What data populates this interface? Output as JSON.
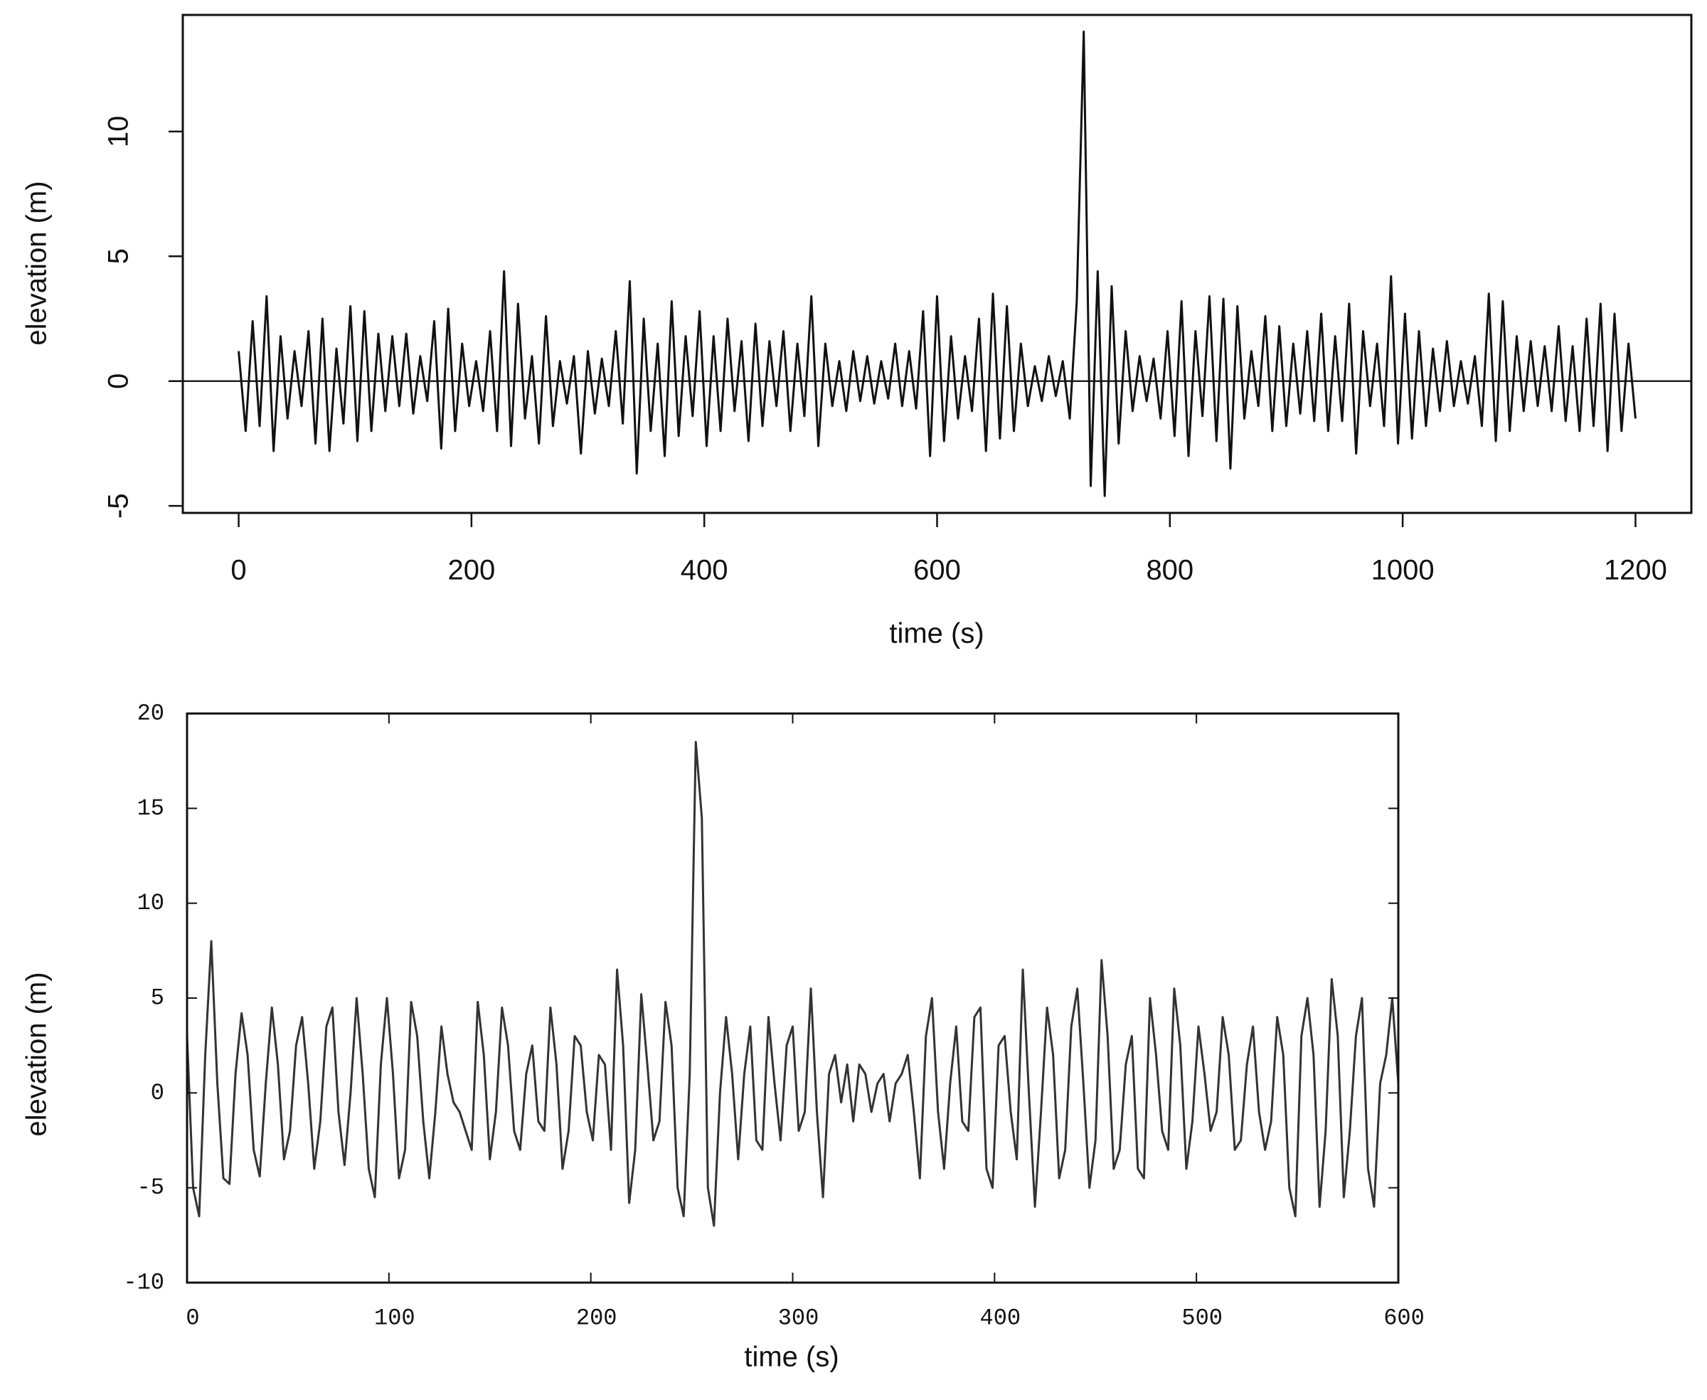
{
  "chart_data": [
    {
      "type": "line",
      "xlabel": "time (s)",
      "ylabel": "elevation (m)",
      "color": "#111111",
      "hline": 0,
      "xlim": [
        -48,
        1248
      ],
      "ylim": [
        -5.28,
        14.67
      ],
      "xticks": [
        0,
        200,
        400,
        600,
        800,
        1000,
        1200
      ],
      "yticks": [
        -5,
        0,
        5,
        10
      ],
      "x": [
        0,
        6,
        12,
        18,
        24,
        30,
        36,
        42,
        48,
        54,
        60,
        66,
        72,
        78,
        84,
        90,
        96,
        102,
        108,
        114,
        120,
        126,
        132,
        138,
        144,
        150,
        156,
        162,
        168,
        174,
        180,
        186,
        192,
        198,
        204,
        210,
        216,
        222,
        228,
        234,
        240,
        246,
        252,
        258,
        264,
        270,
        276,
        282,
        288,
        294,
        300,
        306,
        312,
        318,
        324,
        330,
        336,
        342,
        348,
        354,
        360,
        366,
        372,
        378,
        384,
        390,
        396,
        402,
        408,
        414,
        420,
        426,
        432,
        438,
        444,
        450,
        456,
        462,
        468,
        474,
        480,
        486,
        492,
        498,
        504,
        510,
        516,
        522,
        528,
        534,
        540,
        546,
        552,
        558,
        564,
        570,
        576,
        582,
        588,
        594,
        600,
        606,
        612,
        618,
        624,
        630,
        636,
        642,
        648,
        654,
        660,
        666,
        672,
        678,
        684,
        690,
        696,
        702,
        708,
        714,
        720,
        726,
        732,
        738,
        744,
        750,
        756,
        762,
        768,
        774,
        780,
        786,
        792,
        798,
        804,
        810,
        816,
        822,
        828,
        834,
        840,
        846,
        852,
        858,
        864,
        870,
        876,
        882,
        888,
        894,
        900,
        906,
        912,
        918,
        924,
        930,
        936,
        942,
        948,
        954,
        960,
        966,
        972,
        978,
        984,
        990,
        996,
        1002,
        1008,
        1014,
        1020,
        1026,
        1032,
        1038,
        1044,
        1050,
        1056,
        1062,
        1068,
        1074,
        1080,
        1086,
        1092,
        1098,
        1104,
        1110,
        1116,
        1122,
        1128,
        1134,
        1140,
        1146,
        1152,
        1158,
        1164,
        1170,
        1176,
        1182,
        1188,
        1194,
        1200
      ],
      "values": [
        1.2,
        -2.0,
        2.4,
        -1.8,
        3.4,
        -2.8,
        1.8,
        -1.5,
        1.2,
        -1.0,
        2.0,
        -2.5,
        2.5,
        -2.8,
        1.3,
        -1.7,
        3.0,
        -2.4,
        2.8,
        -2.0,
        1.9,
        -1.2,
        1.8,
        -1.0,
        1.9,
        -1.3,
        1.0,
        -0.8,
        2.4,
        -2.7,
        2.9,
        -2.0,
        1.5,
        -1.0,
        0.8,
        -1.2,
        2.0,
        -2.0,
        4.4,
        -2.6,
        3.1,
        -1.5,
        1.0,
        -2.5,
        2.6,
        -1.8,
        0.8,
        -0.9,
        1.0,
        -2.9,
        1.2,
        -1.3,
        0.9,
        -1.0,
        2.0,
        -1.7,
        4.0,
        -3.7,
        2.5,
        -2.0,
        1.5,
        -3.0,
        3.2,
        -2.2,
        1.8,
        -1.4,
        2.8,
        -2.6,
        1.8,
        -2.0,
        2.5,
        -1.2,
        1.6,
        -2.4,
        2.3,
        -1.8,
        1.6,
        -1.0,
        2.0,
        -2.0,
        1.5,
        -1.4,
        3.4,
        -2.6,
        1.5,
        -1.0,
        0.8,
        -1.2,
        1.2,
        -0.8,
        1.0,
        -0.9,
        0.8,
        -0.7,
        1.5,
        -1.0,
        1.2,
        -1.1,
        2.8,
        -3.0,
        3.4,
        -2.4,
        1.8,
        -1.5,
        1.0,
        -1.2,
        2.5,
        -2.8,
        3.5,
        -2.3,
        3.0,
        -2.0,
        1.5,
        -1.0,
        0.6,
        -0.8,
        1.0,
        -0.6,
        0.8,
        -1.5,
        3.2,
        14.0,
        -4.2,
        4.4,
        -4.6,
        3.8,
        -2.5,
        2.0,
        -1.2,
        1.0,
        -0.8,
        0.9,
        -1.5,
        2.0,
        -2.2,
        3.2,
        -3.0,
        2.0,
        -1.4,
        3.4,
        -2.4,
        3.3,
        -3.5,
        3.0,
        -1.5,
        1.2,
        -1.0,
        2.6,
        -2.0,
        2.2,
        -1.8,
        1.5,
        -1.3,
        2.0,
        -1.6,
        2.7,
        -2.0,
        1.8,
        -1.6,
        3.1,
        -2.9,
        2.0,
        -1.0,
        1.5,
        -1.8,
        4.2,
        -2.5,
        2.7,
        -2.3,
        2.0,
        -1.8,
        1.3,
        -1.2,
        1.6,
        -1.0,
        0.8,
        -0.9,
        1.0,
        -1.8,
        3.5,
        -2.4,
        3.2,
        -2.0,
        1.8,
        -1.2,
        1.6,
        -1.0,
        1.4,
        -1.2,
        2.2,
        -1.6,
        1.4,
        -2.0,
        2.5,
        -1.8,
        3.1,
        -2.8,
        2.7,
        -2.0,
        1.5,
        -1.5
      ]
    },
    {
      "type": "line",
      "xlabel": "time (s)",
      "ylabel": "elevation (m)",
      "color": "#333333",
      "xlim": [
        0,
        600
      ],
      "ylim": [
        -10,
        20
      ],
      "xticks": [
        0,
        100,
        200,
        300,
        400,
        500,
        600
      ],
      "yticks": [
        -10,
        -5,
        0,
        5,
        10,
        15,
        20
      ],
      "x": [
        0,
        3,
        6,
        9,
        12,
        15,
        18,
        21,
        24,
        27,
        30,
        33,
        36,
        39,
        42,
        45,
        48,
        51,
        54,
        57,
        60,
        63,
        66,
        69,
        72,
        75,
        78,
        81,
        84,
        87,
        90,
        93,
        96,
        99,
        102,
        105,
        108,
        111,
        114,
        117,
        120,
        123,
        126,
        129,
        132,
        135,
        138,
        141,
        144,
        147,
        150,
        153,
        156,
        159,
        162,
        165,
        168,
        171,
        174,
        177,
        180,
        183,
        186,
        189,
        192,
        195,
        198,
        201,
        204,
        207,
        210,
        213,
        216,
        219,
        222,
        225,
        228,
        231,
        234,
        237,
        240,
        243,
        246,
        249,
        252,
        255,
        258,
        261,
        264,
        267,
        270,
        273,
        276,
        279,
        282,
        285,
        288,
        291,
        294,
        297,
        300,
        303,
        306,
        309,
        312,
        315,
        318,
        321,
        324,
        327,
        330,
        333,
        336,
        339,
        342,
        345,
        348,
        351,
        354,
        357,
        360,
        363,
        366,
        369,
        372,
        375,
        378,
        381,
        384,
        387,
        390,
        393,
        396,
        399,
        402,
        405,
        408,
        411,
        414,
        417,
        420,
        423,
        426,
        429,
        432,
        435,
        438,
        441,
        444,
        447,
        450,
        453,
        456,
        459,
        462,
        465,
        468,
        471,
        474,
        477,
        480,
        483,
        486,
        489,
        492,
        495,
        498,
        501,
        504,
        507,
        510,
        513,
        516,
        519,
        522,
        525,
        528,
        531,
        534,
        537,
        540,
        543,
        546,
        549,
        552,
        555,
        558,
        561,
        564,
        567,
        570,
        573,
        576,
        579,
        582,
        585,
        588,
        591,
        594,
        597,
        600
      ],
      "values": [
        3.0,
        -5.0,
        -6.5,
        2.0,
        8.0,
        0.5,
        -4.5,
        -4.8,
        1.0,
        4.2,
        2.0,
        -3.0,
        -4.4,
        0.5,
        4.5,
        1.5,
        -3.5,
        -2.0,
        2.5,
        4.0,
        0.5,
        -4.0,
        -1.5,
        3.5,
        4.5,
        -1.0,
        -3.8,
        0.0,
        5.0,
        1.0,
        -4.0,
        -5.5,
        1.5,
        5.0,
        1.0,
        -4.5,
        -3.0,
        4.8,
        3.0,
        -1.5,
        -4.5,
        -1.0,
        3.5,
        1.0,
        -0.5,
        -1.0,
        -2.0,
        -3.0,
        4.8,
        2.0,
        -3.5,
        -1.0,
        4.5,
        2.5,
        -2.0,
        -3.0,
        1.0,
        2.5,
        -1.5,
        -2.0,
        4.5,
        1.5,
        -4.0,
        -2.0,
        3.0,
        2.5,
        -1.0,
        -2.5,
        2.0,
        1.5,
        -3.0,
        6.5,
        2.5,
        -5.8,
        -3.0,
        5.2,
        1.5,
        -2.5,
        -1.5,
        4.8,
        2.5,
        -5.0,
        -6.5,
        1.0,
        18.5,
        14.5,
        -5.0,
        -7.0,
        0.0,
        4.0,
        1.0,
        -3.5,
        1.0,
        3.5,
        -2.5,
        -3.0,
        4.0,
        0.5,
        -2.5,
        2.5,
        3.5,
        -2.0,
        -1.0,
        5.5,
        -1.0,
        -5.5,
        1.0,
        2.0,
        -0.5,
        1.5,
        -1.5,
        1.5,
        1.0,
        -1.0,
        0.5,
        1.0,
        -1.5,
        0.5,
        1.0,
        2.0,
        -1.0,
        -4.5,
        3.0,
        5.0,
        -1.0,
        -4.0,
        0.5,
        3.5,
        -1.5,
        -2.0,
        4.0,
        4.5,
        -4.0,
        -5.0,
        2.5,
        3.0,
        -1.0,
        -3.5,
        6.5,
        0.0,
        -6.0,
        -1.0,
        4.5,
        2.0,
        -4.5,
        -3.0,
        3.5,
        5.5,
        0.5,
        -5.0,
        -2.5,
        7.0,
        3.0,
        -4.0,
        -3.0,
        1.5,
        3.0,
        -4.0,
        -4.5,
        5.0,
        2.0,
        -2.0,
        -3.0,
        5.5,
        2.5,
        -4.0,
        -1.5,
        3.5,
        1.0,
        -2.0,
        -1.0,
        4.0,
        2.0,
        -3.0,
        -2.5,
        1.5,
        3.5,
        -1.0,
        -3.0,
        -1.5,
        4.0,
        2.0,
        -5.0,
        -6.5,
        3.0,
        5.0,
        2.0,
        -6.0,
        -2.0,
        6.0,
        3.0,
        -5.5,
        -2.0,
        3.0,
        5.0,
        -4.0,
        -6.0,
        0.5,
        2.0,
        5.0,
        0.5
      ]
    }
  ]
}
